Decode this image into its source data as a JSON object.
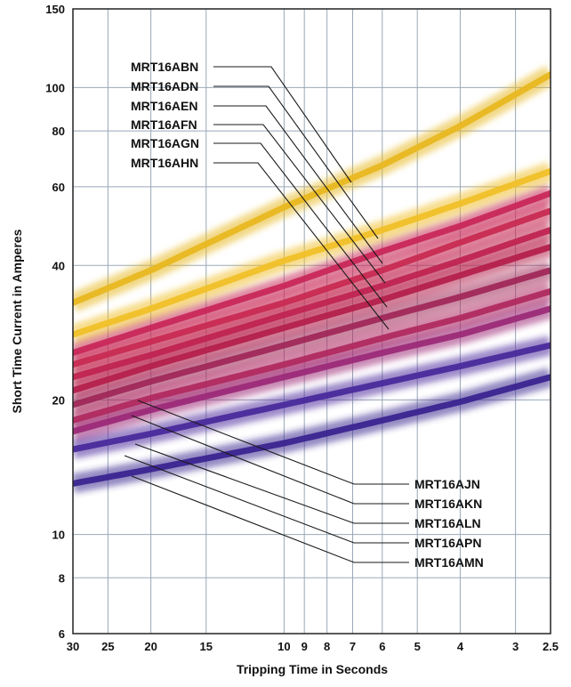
{
  "chart_data": {
    "type": "line",
    "xlabel": "Tripping Time in Seconds",
    "ylabel": "Short Time Current in Amperes",
    "x_scale": "log",
    "y_scale": "log",
    "x_reversed": true,
    "xlim": [
      30,
      2.5
    ],
    "ylim": [
      6,
      150
    ],
    "x_ticks": [
      30,
      25,
      20,
      15,
      10,
      9,
      8,
      7,
      6,
      5,
      4,
      3,
      2.5
    ],
    "x_tick_labels": [
      "30",
      "25",
      "20",
      "15",
      "10",
      "9",
      "8",
      "7",
      "6",
      "5",
      "4",
      "3",
      "2.5"
    ],
    "y_ticks": [
      6,
      8,
      10,
      20,
      40,
      60,
      80,
      100,
      150
    ],
    "y_tick_labels": [
      "6",
      "8",
      "10",
      "20",
      "40",
      "60",
      "80",
      "100",
      "150"
    ],
    "grid": true,
    "x": [
      30,
      20,
      10,
      6,
      4,
      2.5
    ],
    "series": [
      {
        "name": "MRT16ABN",
        "color": "#e8b820",
        "values": [
          33,
          39,
          54,
          67,
          82,
          107
        ]
      },
      {
        "name": "MRT16ADN",
        "color": "#f0c028",
        "values": [
          28,
          32,
          41,
          48,
          55,
          65
        ]
      },
      {
        "name": "MRT16AEN",
        "color": "#c8285a",
        "values": [
          25.5,
          29,
          36,
          43,
          49,
          58
        ]
      },
      {
        "name": "MRT16AFN",
        "color": "#c82a52",
        "values": [
          24,
          27,
          33,
          39,
          45,
          53
        ]
      },
      {
        "name": "MRT16AGN",
        "color": "#c02450",
        "values": [
          22.5,
          25.2,
          31,
          36,
          41,
          48
        ]
      },
      {
        "name": "MRT16AHN",
        "color": "#b4204c",
        "values": [
          21,
          23.8,
          29,
          33.5,
          38,
          44
        ]
      },
      {
        "name": "MRT16AJN",
        "color": "#a02858",
        "values": [
          19.5,
          22,
          26.5,
          30.5,
          34,
          39
        ]
      },
      {
        "name": "MRT16AKN",
        "color": "#b02a60",
        "values": [
          18,
          20.2,
          24,
          27.5,
          30.5,
          35
        ]
      },
      {
        "name": "MRT16ALN",
        "color": "#9c2a78",
        "values": [
          17,
          19,
          22.5,
          25.5,
          28,
          32
        ]
      },
      {
        "name": "MRT16APN",
        "color": "#4a2a9c",
        "values": [
          15.5,
          16.8,
          19.5,
          21.8,
          23.8,
          26.5
        ]
      },
      {
        "name": "MRT16AMN",
        "color": "#3a2490",
        "values": [
          13,
          14,
          16,
          18,
          19.8,
          22.5
        ]
      }
    ],
    "labels_top": [
      "MRT16ABN",
      "MRT16ADN",
      "MRT16AEN",
      "MRT16AFN",
      "MRT16AGN",
      "MRT16AHN"
    ],
    "labels_bottom": [
      "MRT16AJN",
      "MRT16AKN",
      "MRT16ALN",
      "MRT16APN",
      "MRT16AMN"
    ]
  }
}
